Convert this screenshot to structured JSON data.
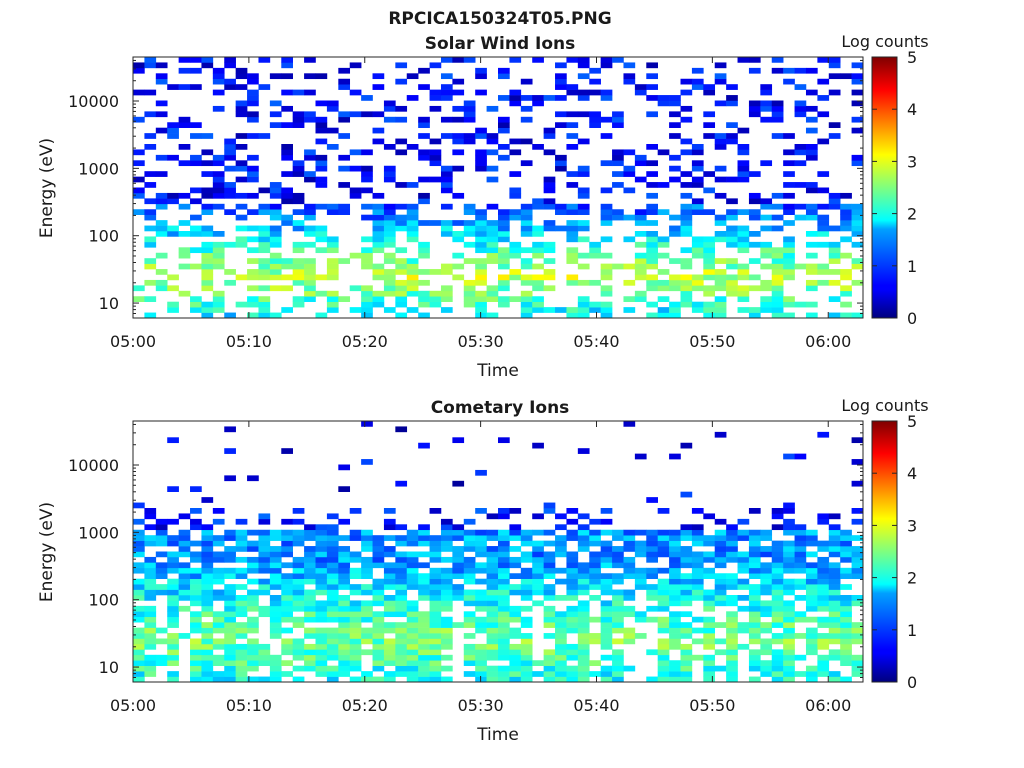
{
  "figure": {
    "title": "RPCICA150324T05.PNG"
  },
  "chart_data": [
    {
      "type": "heatmap",
      "title": "Solar Wind Ions",
      "xlabel": "Time",
      "ylabel": "Energy (eV)",
      "x_ticks": [
        "05:00",
        "05:10",
        "05:20",
        "05:30",
        "05:40",
        "05:50",
        "06:00"
      ],
      "y_ticks": [
        "10",
        "100",
        "1000",
        "10000"
      ],
      "y_scale": "log",
      "ylim": [
        6,
        45000
      ],
      "xlim": [
        "05:00",
        "06:03"
      ],
      "colorbar": {
        "label": "Log counts",
        "ticks": [
          "0",
          "1",
          "2",
          "3",
          "4",
          "5"
        ],
        "range": [
          0,
          5
        ]
      },
      "seed": 7,
      "profile": "solar"
    },
    {
      "type": "heatmap",
      "title": "Cometary Ions",
      "xlabel": "Time",
      "ylabel": "Energy (eV)",
      "x_ticks": [
        "05:00",
        "05:10",
        "05:20",
        "05:30",
        "05:40",
        "05:50",
        "06:00"
      ],
      "y_ticks": [
        "10",
        "100",
        "1000",
        "10000"
      ],
      "y_scale": "log",
      "ylim": [
        6,
        45000
      ],
      "xlim": [
        "05:00",
        "06:03"
      ],
      "colorbar": {
        "label": "Log counts",
        "ticks": [
          "0",
          "1",
          "2",
          "3",
          "4",
          "5"
        ],
        "range": [
          0,
          5
        ]
      },
      "seed": 13,
      "profile": "comet"
    }
  ]
}
